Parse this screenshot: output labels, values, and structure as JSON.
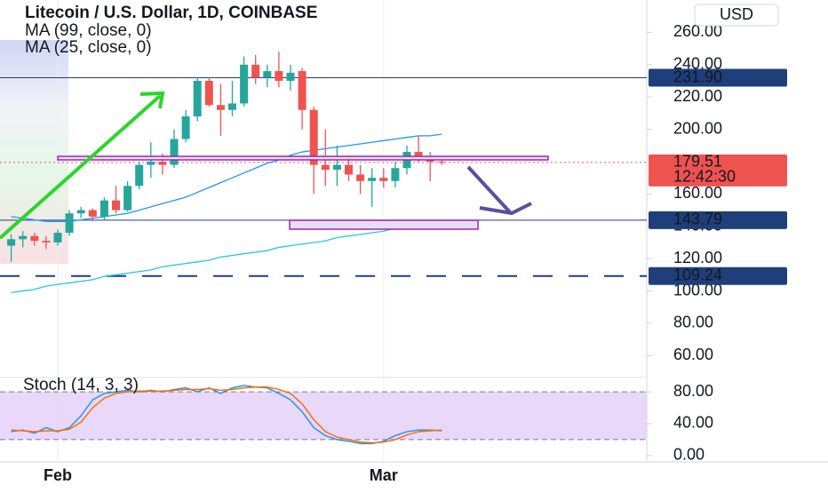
{
  "chart_data": {
    "type": "candlestick",
    "title": "Litecoin / U.S. Dollar, 1D, COINBASE",
    "currency": "USD",
    "categories": [
      null,
      null,
      null,
      null,
      "Feb",
      null,
      null,
      null,
      null,
      null,
      null,
      null,
      null,
      null,
      null,
      null,
      null,
      null,
      null,
      null,
      null,
      null,
      null,
      null,
      null,
      null,
      null,
      null,
      null,
      null,
      null,
      null,
      "Mar",
      null,
      null,
      null,
      null,
      null
    ],
    "ohlc": [
      [
        128,
        135,
        118,
        132
      ],
      [
        132,
        137,
        127,
        134
      ],
      [
        134,
        136,
        128,
        131
      ],
      [
        131,
        134,
        126,
        130
      ],
      [
        130,
        138,
        128,
        136
      ],
      [
        136,
        150,
        134,
        148
      ],
      [
        148,
        152,
        145,
        150
      ],
      [
        150,
        151,
        143,
        146
      ],
      [
        146,
        158,
        144,
        156
      ],
      [
        156,
        165,
        148,
        150
      ],
      [
        150,
        168,
        149,
        165
      ],
      [
        165,
        180,
        163,
        178
      ],
      [
        178,
        192,
        170,
        180
      ],
      [
        180,
        185,
        172,
        178
      ],
      [
        178,
        200,
        176,
        194
      ],
      [
        194,
        212,
        192,
        208
      ],
      [
        208,
        232,
        205,
        230
      ],
      [
        230,
        232,
        214,
        215
      ],
      [
        215,
        228,
        196,
        212
      ],
      [
        212,
        230,
        208,
        216
      ],
      [
        216,
        245,
        214,
        240
      ],
      [
        240,
        246,
        228,
        232
      ],
      [
        232,
        240,
        226,
        236
      ],
      [
        236,
        248,
        226,
        230
      ],
      [
        230,
        240,
        224,
        235
      ],
      [
        236,
        238,
        200,
        212
      ],
      [
        212,
        214,
        160,
        178
      ],
      [
        178,
        200,
        165,
        175
      ],
      [
        175,
        190,
        165,
        178
      ],
      [
        178,
        184,
        168,
        172
      ],
      [
        172,
        178,
        160,
        168
      ],
      [
        168,
        176,
        152,
        170
      ],
      [
        170,
        176,
        164,
        168
      ],
      [
        168,
        180,
        164,
        176
      ],
      [
        176,
        190,
        172,
        186
      ],
      [
        186,
        196,
        180,
        182
      ],
      [
        182,
        186,
        168,
        180
      ],
      [
        180,
        182,
        178,
        179.51
      ]
    ],
    "up_color": "#26a69a",
    "down_color": "#ef5350",
    "ylim": [
      47,
      280
    ],
    "yticks": [
      {
        "value": 260,
        "label": "260.00"
      },
      {
        "value": 240,
        "label": "240.00"
      },
      {
        "value": 220,
        "label": "220.00"
      },
      {
        "value": 200,
        "label": "200.00"
      },
      {
        "value": 160,
        "label": "160.00"
      },
      {
        "value": 140,
        "label": "140.00"
      },
      {
        "value": 120,
        "label": "120.00"
      },
      {
        "value": 100,
        "label": "100.00"
      },
      {
        "value": 80,
        "label": "80.00"
      },
      {
        "value": 60,
        "label": "60.00"
      }
    ],
    "series": [
      {
        "name": "MA (99, close, 0)",
        "color": "#26c6da",
        "values": [
          99,
          100,
          101,
          103,
          104,
          105,
          106,
          107,
          109,
          110,
          111,
          112,
          113,
          115,
          116,
          117,
          118,
          119,
          121,
          122,
          123,
          124,
          125,
          127,
          128,
          129,
          130,
          131,
          133,
          134,
          135,
          136,
          137,
          139,
          140,
          141,
          142,
          143
        ]
      },
      {
        "name": "MA (25, close, 0)",
        "color": "#2196f3",
        "values": [
          146,
          145,
          144,
          143,
          143,
          143,
          144,
          145,
          146,
          147,
          148,
          150,
          152,
          154,
          156,
          158,
          161,
          164,
          167,
          170,
          173,
          176,
          179,
          181,
          184,
          186,
          187,
          188,
          189,
          190,
          191,
          192,
          193,
          194,
          195,
          196,
          196,
          197
        ]
      }
    ],
    "price_lines": [
      {
        "value": 231.9,
        "label": "231.90",
        "color": "#1e3f7a",
        "style": "solid"
      },
      {
        "value": 143.79,
        "label": "143.79",
        "color": "#1e3f7a",
        "style": "solid"
      },
      {
        "value": 109.24,
        "label": "109.24",
        "color": "#1e3f7a",
        "style": "dashed"
      },
      {
        "value": 179.51,
        "label": "179.51",
        "color": "#ef5350",
        "style": "dotted"
      }
    ],
    "countdown": "12:42:30",
    "stoch": {
      "name": "Stoch (14, 3, 3)",
      "y2lim": [
        -8,
        98
      ],
      "y2ticks": [
        {
          "value": 80,
          "label": "80.00"
        },
        {
          "value": 40,
          "label": "40.00"
        },
        {
          "value": 0,
          "label": "0.00"
        }
      ],
      "bands": [
        20,
        80
      ],
      "band_color": "#e1c8fa",
      "series": [
        {
          "color": "#2196f3",
          "axis": "y2",
          "values": [
            30,
            32,
            28,
            35,
            30,
            35,
            50,
            70,
            78,
            80,
            82,
            80,
            82,
            80,
            83,
            85,
            80,
            85,
            78,
            85,
            88,
            86,
            85,
            78,
            70,
            55,
            35,
            25,
            20,
            18,
            15,
            15,
            18,
            25,
            30,
            32,
            32,
            31
          ]
        },
        {
          "color": "#ff6d00",
          "axis": "y2",
          "values": [
            32,
            31,
            30,
            31,
            31,
            33,
            42,
            60,
            72,
            78,
            80,
            81,
            81,
            81,
            82,
            83,
            83,
            84,
            82,
            83,
            85,
            86,
            86,
            83,
            78,
            65,
            45,
            30,
            23,
            20,
            17,
            16,
            17,
            20,
            26,
            30,
            31,
            32
          ]
        }
      ]
    }
  }
}
